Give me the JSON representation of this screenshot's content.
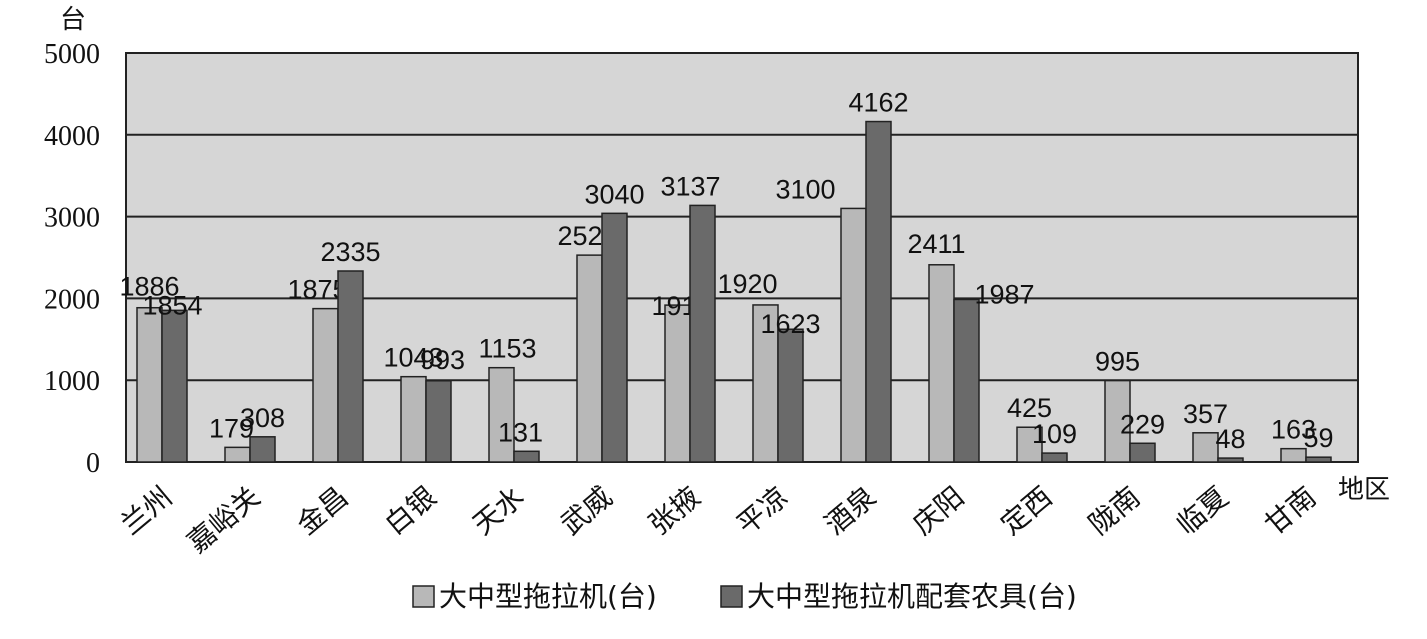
{
  "chart_data": {
    "type": "bar",
    "ylabel": "台",
    "xlabel": "地区",
    "ylim": [
      0,
      5000
    ],
    "yticks": [
      0,
      1000,
      2000,
      3000,
      4000,
      5000
    ],
    "grid": true,
    "legend_position": "bottom",
    "categories": [
      "兰州",
      "嘉峪关",
      "金昌",
      "白银",
      "天水",
      "武威",
      "张掖",
      "平凉",
      "酒泉",
      "庆阳",
      "定西",
      "陇南",
      "临夏",
      "甘南"
    ],
    "series": [
      {
        "name": "大中型拖拉机(台)",
        "color": "#b8b8b8",
        "values": [
          1886,
          179,
          1875,
          1043,
          1153,
          2529,
          1918,
          1920,
          3100,
          2411,
          425,
          995,
          357,
          163
        ]
      },
      {
        "name": "大中型拖拉机配套农具(台)",
        "color": "#6a6a6a",
        "values": [
          1854,
          308,
          2335,
          993,
          131,
          3040,
          3137,
          1623,
          4162,
          1987,
          109,
          229,
          48,
          59
        ]
      }
    ],
    "plot_background": "#d6d6d6"
  }
}
